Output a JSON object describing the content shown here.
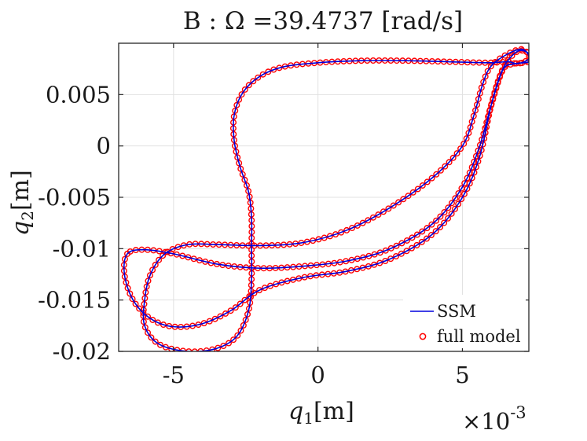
{
  "chart_data": {
    "type": "line",
    "title": "B : Ω =39.4737 [rad/s]",
    "xlabel": "q",
    "xlabel_sub": "1",
    "xlabel_unit": "[m]",
    "ylabel": "q",
    "ylabel_sub": "2",
    "ylabel_unit": "[m]",
    "x_multiplier_base": "×10",
    "x_multiplier_exp": "-3",
    "xlim": [
      -0.0069,
      0.0073
    ],
    "ylim": [
      -0.02,
      0.01
    ],
    "xticks": [
      -0.005,
      0,
      0.005
    ],
    "xtick_labels": [
      "-5",
      "0",
      "5"
    ],
    "yticks": [
      0.005,
      0,
      -0.005,
      -0.01,
      -0.015,
      -0.02
    ],
    "ytick_labels": [
      "0.005",
      "0",
      "-0.005",
      "-0.01",
      "-0.015",
      "-0.02"
    ],
    "grid": true,
    "legend_position": "bottom-right",
    "colors": {
      "ssm": "#0000dd",
      "full": "#ff0000",
      "grid": "#e1e1e1",
      "axis": "#262626"
    },
    "series": [
      {
        "name": "SSM",
        "style": "line",
        "paths": [
          {
            "closed": true,
            "points": [
              [
                0.0066,
                0.0082
              ],
              [
                0.0059,
                0.0081
              ],
              [
                0.0045,
                0.0082
              ],
              [
                0.003,
                0.0083
              ],
              [
                0.0015,
                0.0083
              ],
              [
                0.0,
                0.0081
              ],
              [
                -0.0012,
                0.0077
              ],
              [
                -0.002,
                0.0068
              ],
              [
                -0.0026,
                0.0052
              ],
              [
                -0.0029,
                0.003
              ],
              [
                -0.0029,
                0.0005
              ],
              [
                -0.0027,
                -0.002
              ],
              [
                -0.0024,
                -0.0045
              ],
              [
                -0.0023,
                -0.007
              ],
              [
                -0.0023,
                -0.01
              ],
              [
                -0.0023,
                -0.013
              ],
              [
                -0.0024,
                -0.016
              ],
              [
                -0.0028,
                -0.0185
              ],
              [
                -0.0035,
                -0.0197
              ],
              [
                -0.0045,
                -0.02
              ],
              [
                -0.0055,
                -0.0193
              ],
              [
                -0.006,
                -0.0175
              ],
              [
                -0.006,
                -0.015
              ],
              [
                -0.0058,
                -0.0125
              ],
              [
                -0.0053,
                -0.0105
              ],
              [
                -0.0045,
                -0.0096
              ],
              [
                -0.0035,
                -0.0096
              ],
              [
                -0.002,
                -0.0097
              ],
              [
                -0.0005,
                -0.0094
              ],
              [
                0.001,
                -0.0082
              ],
              [
                0.0025,
                -0.006
              ],
              [
                0.004,
                -0.003
              ],
              [
                0.005,
                0.0
              ],
              [
                0.0054,
                0.003
              ],
              [
                0.0057,
                0.006
              ],
              [
                0.006,
                0.0078
              ],
              [
                0.0066,
                0.009
              ],
              [
                0.0071,
                0.0094
              ],
              [
                0.0073,
                0.0085
              ],
              [
                0.0069,
                0.008
              ]
            ]
          },
          {
            "closed": true,
            "points": [
              [
                -0.0066,
                -0.0105
              ],
              [
                -0.0067,
                -0.0125
              ],
              [
                -0.0064,
                -0.015
              ],
              [
                -0.0058,
                -0.0168
              ],
              [
                -0.005,
                -0.0176
              ],
              [
                -0.004,
                -0.0173
              ],
              [
                -0.003,
                -0.016
              ],
              [
                -0.002,
                -0.014
              ],
              [
                -0.0005,
                -0.0128
              ],
              [
                0.001,
                -0.0122
              ],
              [
                0.0025,
                -0.011
              ],
              [
                0.004,
                -0.0085
              ],
              [
                0.005,
                -0.005
              ],
              [
                0.0056,
                -0.001
              ],
              [
                0.006,
                0.004
              ],
              [
                0.0064,
                0.0075
              ],
              [
                0.0069,
                0.0092
              ],
              [
                0.0073,
                0.009
              ],
              [
                0.0073,
                0.0082
              ],
              [
                0.0068,
                0.008
              ],
              [
                0.0064,
                0.0074
              ],
              [
                0.006,
                0.004
              ],
              [
                0.0056,
                0.0
              ],
              [
                0.005,
                -0.004
              ],
              [
                0.004,
                -0.0075
              ],
              [
                0.0025,
                -0.01
              ],
              [
                0.001,
                -0.0112
              ],
              [
                -0.0005,
                -0.0117
              ],
              [
                -0.002,
                -0.0119
              ],
              [
                -0.0035,
                -0.0115
              ],
              [
                -0.005,
                -0.0105
              ],
              [
                -0.006,
                -0.0101
              ]
            ]
          }
        ]
      },
      {
        "name": "full model",
        "style": "markers",
        "marker": "circle"
      }
    ]
  }
}
